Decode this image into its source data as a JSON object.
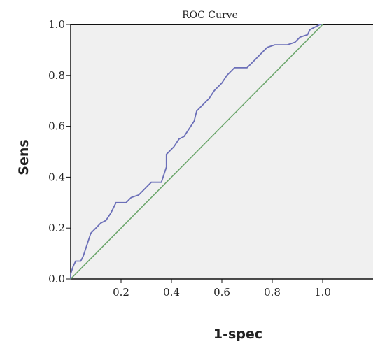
{
  "chart_data": {
    "type": "line",
    "title": "ROC Curve",
    "xlabel": "1-spec",
    "ylabel": "Sens",
    "xlim": [
      0,
      1.2
    ],
    "ylim": [
      0,
      1.0
    ],
    "x_ticks": [
      "0.2",
      "0.4",
      "0.6",
      "0.8",
      "1.0"
    ],
    "y_ticks": [
      "0.0",
      "0.2",
      "0.4",
      "0.6",
      "0.8",
      "1.0"
    ],
    "grid": false,
    "series": [
      {
        "color": "#6b6fb8",
        "points": [
          [
            0.0,
            0.0
          ],
          [
            0.0,
            0.02
          ],
          [
            0.01,
            0.05
          ],
          [
            0.02,
            0.07
          ],
          [
            0.04,
            0.07
          ],
          [
            0.05,
            0.09
          ],
          [
            0.06,
            0.12
          ],
          [
            0.07,
            0.15
          ],
          [
            0.08,
            0.18
          ],
          [
            0.1,
            0.2
          ],
          [
            0.12,
            0.22
          ],
          [
            0.14,
            0.23
          ],
          [
            0.16,
            0.26
          ],
          [
            0.18,
            0.3
          ],
          [
            0.22,
            0.3
          ],
          [
            0.24,
            0.32
          ],
          [
            0.27,
            0.33
          ],
          [
            0.3,
            0.36
          ],
          [
            0.32,
            0.38
          ],
          [
            0.36,
            0.38
          ],
          [
            0.38,
            0.44
          ],
          [
            0.38,
            0.49
          ],
          [
            0.41,
            0.52
          ],
          [
            0.43,
            0.55
          ],
          [
            0.45,
            0.56
          ],
          [
            0.47,
            0.59
          ],
          [
            0.49,
            0.62
          ],
          [
            0.5,
            0.66
          ],
          [
            0.52,
            0.68
          ],
          [
            0.55,
            0.71
          ],
          [
            0.57,
            0.74
          ],
          [
            0.6,
            0.77
          ],
          [
            0.62,
            0.8
          ],
          [
            0.65,
            0.83
          ],
          [
            0.7,
            0.83
          ],
          [
            0.73,
            0.86
          ],
          [
            0.76,
            0.89
          ],
          [
            0.78,
            0.91
          ],
          [
            0.81,
            0.92
          ],
          [
            0.86,
            0.92
          ],
          [
            0.89,
            0.93
          ],
          [
            0.91,
            0.95
          ],
          [
            0.94,
            0.96
          ],
          [
            0.95,
            0.98
          ],
          [
            0.97,
            0.99
          ],
          [
            0.99,
            1.0
          ],
          [
            1.0,
            1.0
          ]
        ]
      },
      {
        "color": "#6aa56a",
        "points": [
          [
            0.0,
            0.0
          ],
          [
            1.0,
            1.0
          ]
        ]
      }
    ]
  }
}
